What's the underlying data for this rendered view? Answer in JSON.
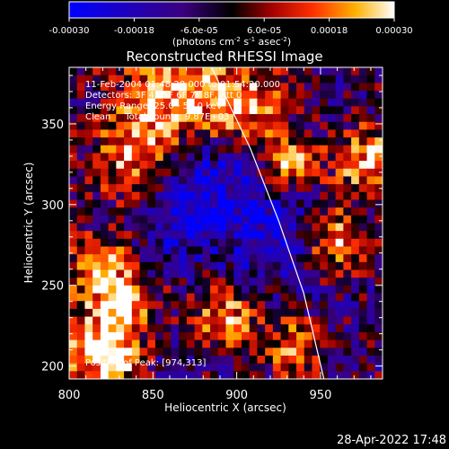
{
  "chart_data": {
    "type": "heatmap",
    "title": "Reconstructed RHESSI Image",
    "xlabel": "Heliocentric X (arcsec)",
    "ylabel": "Heliocentric Y (arcsec)",
    "xlim": [
      800,
      987
    ],
    "ylim": [
      192,
      385
    ],
    "x_ticks": [
      800,
      850,
      900,
      950
    ],
    "y_ticks": [
      200,
      250,
      300,
      350
    ],
    "colorbar": {
      "range": [
        -0.0003,
        0.0003
      ],
      "tick_values": [
        -0.0003,
        -0.00018,
        -6e-05,
        6e-05,
        0.00018,
        0.0003
      ],
      "tick_labels": [
        "-0.00030",
        "-0.00018",
        "-6.0e-05",
        "6.0e-05",
        "0.00018",
        "0.00030"
      ],
      "unit_label": "(photons cm",
      "unit_exp1": "-2",
      "unit_mid": " s",
      "unit_exp2": "-1",
      "unit_mid2": " asec",
      "unit_exp3": "-2",
      "unit_end": ")"
    },
    "annotations": [
      "11-Feb-2004 01:48:20.000 to 01:54:20.000",
      "Detectors: 3F 4F 5F 6F 7F 8F, Att 0",
      "Energy Range: 25.0 - 50.0 keV",
      "Clean     Total counts: 9.87E+03"
    ],
    "peak_label": "Position of Peak: [974,313]",
    "peak": [
      974,
      313
    ],
    "limb_line": {
      "x": [
        885,
        908,
        925,
        940,
        952
      ],
      "y": [
        385,
        335,
        290,
        245,
        192
      ]
    }
  },
  "footer": {
    "timestamp": "28-Apr-2022 17:48"
  }
}
